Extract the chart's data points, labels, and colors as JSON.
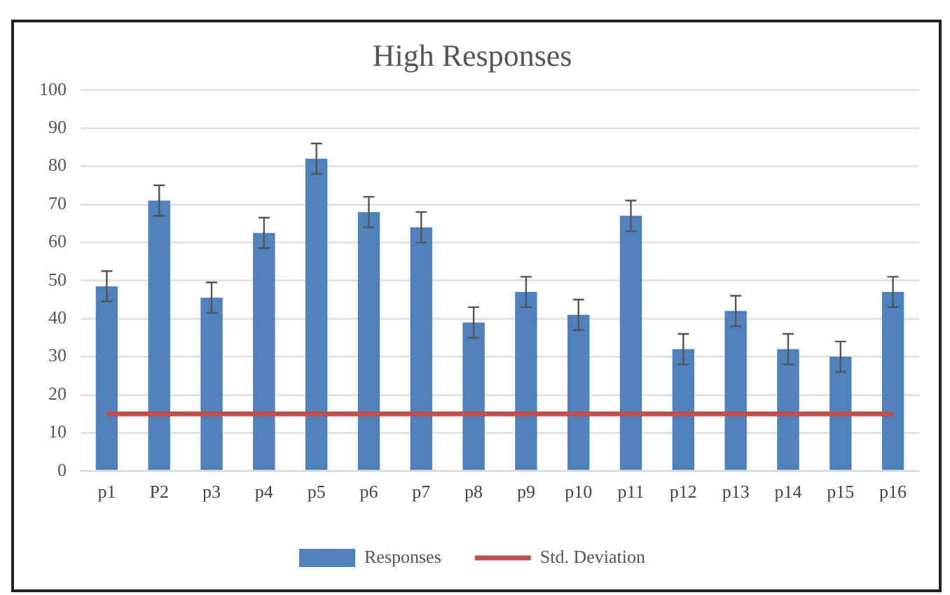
{
  "chart_data": {
    "type": "bar",
    "title": "High Responses",
    "categories": [
      "p1",
      "P2",
      "p3",
      "p4",
      "p5",
      "p6",
      "p7",
      "p8",
      "p9",
      "p10",
      "p11",
      "p12",
      "p13",
      "p14",
      "p15",
      "p16"
    ],
    "series": [
      {
        "name": "Responses",
        "color": "#4f81bd",
        "values": [
          48.5,
          71,
          45.5,
          62.5,
          82,
          68,
          64,
          39,
          47,
          41,
          67,
          32,
          42,
          32,
          30,
          47
        ],
        "errors": [
          4,
          4,
          4,
          4,
          4,
          4,
          4,
          4,
          4,
          4,
          4,
          4,
          4,
          4,
          4,
          4
        ]
      },
      {
        "name": "Std. Deviation",
        "type": "line",
        "color": "#c0504d",
        "values": [
          15,
          15,
          15,
          15,
          15,
          15,
          15,
          15,
          15,
          15,
          15,
          15,
          15,
          15,
          15,
          15
        ]
      }
    ],
    "ylim": [
      0,
      100
    ],
    "yticks": [
      0,
      10,
      20,
      30,
      40,
      50,
      60,
      70,
      80,
      90,
      100
    ],
    "grid": "y",
    "legend": "bottom",
    "marker": "none"
  }
}
